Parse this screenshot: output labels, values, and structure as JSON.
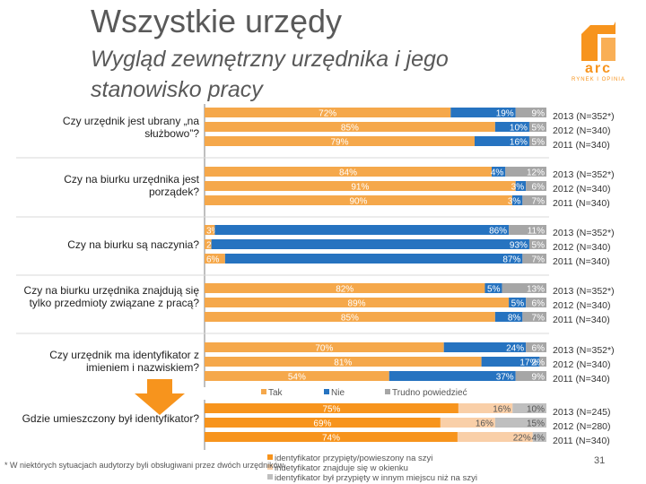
{
  "title": "Wszystkie urzędy",
  "subtitle": "Wygląd zewnętrzny urzędnika i jego stanowisko pracy",
  "logo": {
    "text": "arc",
    "sub": "RYNEK I OPINIA"
  },
  "note": "* W niektórych sytuacjach audytorzy byli obsługiwani przez dwóch urzędników.",
  "page_number": "31",
  "colors": {
    "tak": "#f5a84b",
    "nie": "#2673c0",
    "trudno": "#a6a6a6",
    "id1": "#f7941d",
    "id2": "#f9cfa8",
    "id3": "#bfbfbf",
    "arrow": "#f7941d"
  },
  "chart_data": [
    {
      "type": "bar",
      "orientation": "horizontal-stacked-100",
      "legend": [
        "Tak",
        "Nie",
        "Trudno powiedzieć"
      ],
      "questions": [
        {
          "label": "Czy urzędnik jest ubrany „na służbowo”?",
          "rows": [
            {
              "year": "2013 (N=352*)",
              "values": [
                72,
                19,
                9
              ],
              "labels": [
                "72%",
                "19%",
                "9%"
              ]
            },
            {
              "year": "2012 (N=340)",
              "values": [
                85,
                10,
                5
              ],
              "labels": [
                "85%",
                "10%",
                "5%"
              ]
            },
            {
              "year": "2011 (N=340)",
              "values": [
                79,
                16,
                5
              ],
              "labels": [
                "79%",
                "16%",
                "5%"
              ]
            }
          ]
        },
        {
          "label": "Czy na biurku urzędnika jest porządek?",
          "rows": [
            {
              "year": "2013 (N=352*)",
              "values": [
                84,
                4,
                12
              ],
              "labels": [
                "84%",
                "4%",
                "12%"
              ]
            },
            {
              "year": "2012 (N=340)",
              "values": [
                91,
                3,
                6
              ],
              "labels": [
                "91%",
                "3%",
                "6%"
              ]
            },
            {
              "year": "2011 (N=340)",
              "values": [
                90,
                3,
                7
              ],
              "labels": [
                "90%",
                "3%",
                "7%"
              ]
            }
          ]
        },
        {
          "label": "Czy na biurku są naczynia?",
          "rows": [
            {
              "year": "2013 (N=352*)",
              "values": [
                3,
                86,
                11
              ],
              "labels": [
                "3%",
                "86%",
                "11%"
              ]
            },
            {
              "year": "2012 (N=340)",
              "values": [
                2,
                93,
                5
              ],
              "labels": [
                "2%",
                "93%",
                "5%"
              ]
            },
            {
              "year": "2011 (N=340)",
              "values": [
                6,
                87,
                7
              ],
              "labels": [
                "6%",
                "87%",
                "7%"
              ]
            }
          ]
        },
        {
          "label": "Czy na biurku urzędnika znajdują się tylko przedmioty związane z pracą?",
          "rows": [
            {
              "year": "2013 (N=352*)",
              "values": [
                82,
                5,
                13
              ],
              "labels": [
                "82%",
                "5%",
                "13%"
              ]
            },
            {
              "year": "2012 (N=340)",
              "values": [
                89,
                5,
                6
              ],
              "labels": [
                "89%",
                "5%",
                "6%"
              ]
            },
            {
              "year": "2011 (N=340)",
              "values": [
                85,
                8,
                7
              ],
              "labels": [
                "85%",
                "8%",
                "7%"
              ]
            }
          ]
        },
        {
          "label": "Czy urzędnik ma identyfikator z imieniem i nazwiskiem?",
          "rows": [
            {
              "year": "2013 (N=352*)",
              "values": [
                70,
                24,
                6
              ],
              "labels": [
                "70%",
                "24%",
                "6%"
              ]
            },
            {
              "year": "2012 (N=340)",
              "values": [
                81,
                17,
                2
              ],
              "labels": [
                "81%",
                "17%",
                "2%"
              ]
            },
            {
              "year": "2011 (N=340)",
              "values": [
                54,
                37,
                9
              ],
              "labels": [
                "54%",
                "37%",
                "9%"
              ]
            }
          ]
        }
      ]
    },
    {
      "type": "bar",
      "orientation": "horizontal-stacked-100",
      "legend": [
        "identyfikator przypięty/powieszony na szyi",
        "indetyfikator znajduje się w okienku",
        "identyfikator był przypięty w innym miejscu niż na szyi"
      ],
      "questions": [
        {
          "label": "Gdzie umieszczony był identyfikator?",
          "rows": [
            {
              "year": "2013 (N=245)",
              "values": [
                75,
                16,
                10
              ],
              "labels": [
                "75%",
                "16%",
                "10%"
              ]
            },
            {
              "year": "2012 (N=280)",
              "values": [
                69,
                16,
                15
              ],
              "labels": [
                "69%",
                "16%",
                "15%"
              ]
            },
            {
              "year": "2011 (N=340)",
              "values": [
                74,
                22,
                4
              ],
              "labels": [
                "74%",
                "22%",
                "4%"
              ]
            }
          ]
        }
      ]
    }
  ]
}
